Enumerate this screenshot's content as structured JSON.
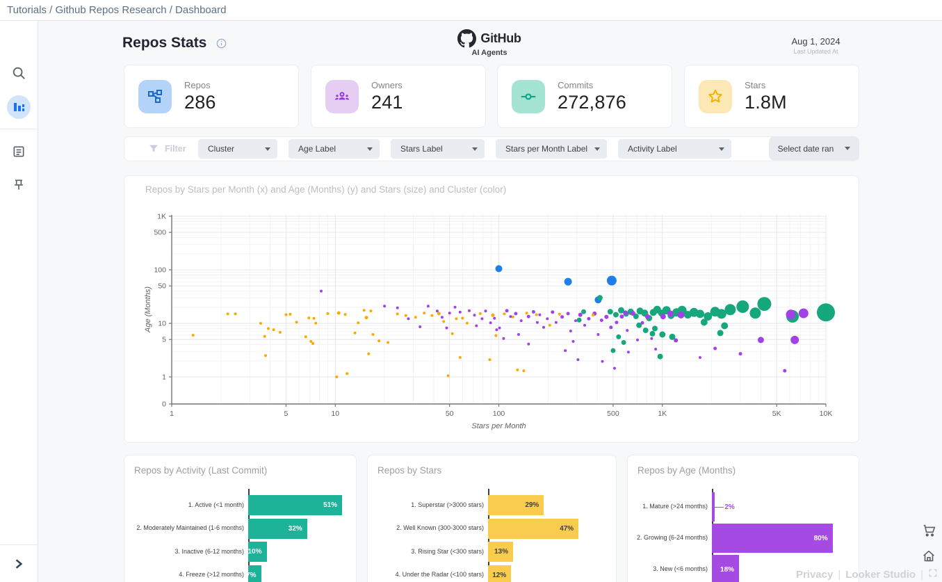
{
  "breadcrumb": "Tutorials / Github Repos Research / Dashboard",
  "header": {
    "title": "Repos Stats",
    "logo_title": "GitHub",
    "logo_subtitle": "AI Agents",
    "date": "Aug 1, 2024",
    "date_label": "Last Updated At"
  },
  "stats": [
    {
      "label": "Repos",
      "value": "286",
      "icon": "repos-icon",
      "accent": "#1967d2",
      "bg": "#b3d3f9"
    },
    {
      "label": "Owners",
      "value": "241",
      "icon": "owners-icon",
      "accent": "#9334e6",
      "bg": "#e6cdf2"
    },
    {
      "label": "Commits",
      "value": "272,876",
      "icon": "commits-icon",
      "accent": "#12a48b",
      "bg": "#a5e3d2"
    },
    {
      "label": "Stars",
      "value": "1.8M",
      "icon": "star-icon",
      "accent": "#f2b100",
      "bg": "#fbe8b4"
    }
  ],
  "filters": {
    "label": "Filter",
    "chips": [
      "Cluster",
      "Age Label",
      "Stars Label",
      "Stars per Month Label",
      "Activity Label"
    ],
    "date_chip": "Select date ran"
  },
  "chart_data": [
    {
      "type": "scatter",
      "title": "Repos by Stars per Month (x) and Age (Months) (y) and Stars (size) and Cluster (color)",
      "xlabel": "Stars per Month",
      "ylabel": "Age (Months)",
      "x_scale": "log",
      "y_scale": "log",
      "x_tick_values": [
        1,
        5,
        10,
        50,
        100,
        500,
        1000,
        5000,
        10000
      ],
      "x_ticks": [
        "1",
        "5",
        "10",
        "50",
        "100",
        "500",
        "1K",
        "5K",
        "10K"
      ],
      "y_tick_values": [
        0,
        1,
        5,
        10,
        50,
        100,
        500,
        1000
      ],
      "y_ticks": [
        "0",
        "1",
        "5",
        "10",
        "50",
        "100",
        "500",
        "1K"
      ],
      "clusters": {
        "o": "#f9ab00",
        "p": "#a142e8",
        "g": "#17a77d",
        "b": "#1f7fe8"
      },
      "points": [
        [
          1.35,
          6,
          2,
          "o"
        ],
        [
          2.2,
          15,
          2,
          "o"
        ],
        [
          2.45,
          15,
          2,
          "o"
        ],
        [
          3.5,
          10,
          2,
          "o"
        ],
        [
          3.9,
          8,
          2,
          "o"
        ],
        [
          4.2,
          7.6,
          2,
          "o"
        ],
        [
          4.6,
          6.8,
          2,
          "o"
        ],
        [
          3.7,
          5.7,
          2,
          "o"
        ],
        [
          3.75,
          2.5,
          2,
          "o"
        ],
        [
          5,
          14.5,
          2,
          "o"
        ],
        [
          5.3,
          14.8,
          2,
          "o"
        ],
        [
          5.8,
          10.5,
          2,
          "o"
        ],
        [
          6.9,
          12.6,
          2,
          "o"
        ],
        [
          7.4,
          12.4,
          2,
          "o"
        ],
        [
          7.6,
          10.1,
          2,
          "o"
        ],
        [
          6.6,
          5.6,
          2,
          "o"
        ],
        [
          7.1,
          4.6,
          2,
          "o"
        ],
        [
          7.3,
          4.2,
          2,
          "o"
        ],
        [
          9,
          15.2,
          2,
          "o"
        ],
        [
          10.5,
          15.6,
          2.5,
          "o"
        ],
        [
          11.5,
          14.6,
          2,
          "o"
        ],
        [
          13.8,
          10.2,
          2,
          "o"
        ],
        [
          15.5,
          12.8,
          2.5,
          "o"
        ],
        [
          16.5,
          17,
          2,
          "o"
        ],
        [
          15,
          17.5,
          2,
          "o"
        ],
        [
          13.2,
          6.6,
          2,
          "o"
        ],
        [
          17,
          6.2,
          2,
          "o"
        ],
        [
          18.5,
          4.7,
          2,
          "o"
        ],
        [
          21,
          4.4,
          2,
          "o"
        ],
        [
          16,
          2.7,
          2,
          "o"
        ],
        [
          10.2,
          1,
          2,
          "o"
        ],
        [
          11.8,
          1.15,
          2,
          "o"
        ],
        [
          24,
          15,
          2,
          "o"
        ],
        [
          27,
          14,
          2,
          "o"
        ],
        [
          31,
          13,
          2,
          "o"
        ],
        [
          35,
          15.5,
          2,
          "o"
        ],
        [
          39,
          14,
          2,
          "o"
        ],
        [
          43,
          15.2,
          2.5,
          "o"
        ],
        [
          46,
          10.8,
          2,
          "o"
        ],
        [
          55,
          12.2,
          2,
          "o"
        ],
        [
          60,
          12.5,
          2,
          "o"
        ],
        [
          64,
          10.1,
          2,
          "o"
        ],
        [
          52,
          6.4,
          2,
          "o"
        ],
        [
          77,
          15.2,
          2,
          "o"
        ],
        [
          92,
          14.2,
          2.5,
          "o"
        ],
        [
          108,
          15,
          2,
          "o"
        ],
        [
          122,
          13.2,
          2,
          "o"
        ],
        [
          96,
          5.9,
          2,
          "o"
        ],
        [
          130,
          1.35,
          2,
          "o"
        ],
        [
          142,
          1.3,
          2,
          "o"
        ],
        [
          88,
          2.1,
          2,
          "o"
        ],
        [
          58,
          2.3,
          2,
          "o"
        ],
        [
          49,
          1.05,
          2,
          "o"
        ],
        [
          205,
          9.2,
          2,
          "o"
        ],
        [
          235,
          14.8,
          2,
          "o"
        ],
        [
          148,
          15.5,
          2,
          "o"
        ],
        [
          170,
          14.5,
          2,
          "o"
        ],
        [
          377,
          14.3,
          2,
          "o"
        ],
        [
          8.2,
          40,
          2,
          "p"
        ],
        [
          20,
          21,
          2,
          "p"
        ],
        [
          24,
          19.5,
          2,
          "p"
        ],
        [
          28,
          12.2,
          2,
          "p"
        ],
        [
          33,
          8.6,
          2,
          "p"
        ],
        [
          37,
          21,
          2,
          "p"
        ],
        [
          42,
          17,
          2,
          "p"
        ],
        [
          45,
          13,
          2,
          "p"
        ],
        [
          50,
          15.5,
          2,
          "p"
        ],
        [
          48,
          8.2,
          2,
          "p"
        ],
        [
          54,
          20,
          2,
          "p"
        ],
        [
          58,
          16.2,
          2,
          "p"
        ],
        [
          66,
          17.2,
          2,
          "p"
        ],
        [
          71,
          14.2,
          2,
          "p"
        ],
        [
          73,
          9,
          2,
          "p"
        ],
        [
          79,
          12.2,
          2,
          "p"
        ],
        [
          83,
          17,
          2,
          "p"
        ],
        [
          89,
          10.2,
          2,
          "p"
        ],
        [
          94,
          12.4,
          2,
          "p"
        ],
        [
          101,
          8.2,
          2,
          "p"
        ],
        [
          112,
          17.2,
          2.5,
          "p"
        ],
        [
          118,
          13.4,
          2,
          "p"
        ],
        [
          127,
          15.2,
          2.5,
          "p"
        ],
        [
          137,
          11.2,
          2,
          "p"
        ],
        [
          152,
          13.4,
          2.5,
          "p"
        ],
        [
          163,
          16.4,
          2.5,
          "p"
        ],
        [
          172,
          10.4,
          2,
          "p"
        ],
        [
          178,
          14.4,
          2,
          "p"
        ],
        [
          188,
          8.4,
          2,
          "p"
        ],
        [
          198,
          12.2,
          2,
          "p"
        ],
        [
          213,
          16.2,
          2.5,
          "p"
        ],
        [
          224,
          10.4,
          2,
          "p"
        ],
        [
          244,
          13.2,
          2.5,
          "p"
        ],
        [
          265,
          15.2,
          2.5,
          "p"
        ],
        [
          275,
          7.2,
          2,
          "p"
        ],
        [
          295,
          11.2,
          2,
          "p"
        ],
        [
          315,
          14.4,
          3,
          "p"
        ],
        [
          335,
          9.2,
          2,
          "p"
        ],
        [
          355,
          12.2,
          2.5,
          "p"
        ],
        [
          385,
          15.2,
          3,
          "p"
        ],
        [
          405,
          6.2,
          2,
          "p"
        ],
        [
          425,
          11.4,
          2.5,
          "p"
        ],
        [
          455,
          13.2,
          3,
          "p"
        ],
        [
          485,
          8.4,
          2.5,
          "p"
        ],
        [
          525,
          10.4,
          2.5,
          "p"
        ],
        [
          565,
          13.4,
          3,
          "p"
        ],
        [
          595,
          15.7,
          3.5,
          "p"
        ],
        [
          610,
          7.4,
          2,
          "p"
        ],
        [
          660,
          15.4,
          3.5,
          "p"
        ],
        [
          705,
          4.9,
          2,
          "p"
        ],
        [
          755,
          10.2,
          2.5,
          "p"
        ],
        [
          810,
          13.4,
          3.5,
          "p"
        ],
        [
          860,
          5.2,
          2,
          "p"
        ],
        [
          910,
          3.3,
          2,
          "p"
        ],
        [
          255,
          3.1,
          2,
          "p"
        ],
        [
          305,
          2.1,
          2,
          "p"
        ],
        [
          430,
          1.95,
          2,
          "p"
        ],
        [
          510,
          1.45,
          2,
          "p"
        ],
        [
          285,
          4.6,
          2,
          "p"
        ],
        [
          620,
          2.9,
          2,
          "p"
        ],
        [
          152,
          4.1,
          2,
          "p"
        ],
        [
          132,
          6.2,
          2,
          "p"
        ],
        [
          107,
          5.2,
          2,
          "p"
        ],
        [
          97,
          7.6,
          2,
          "p"
        ],
        [
          1010,
          13.4,
          4,
          "p"
        ],
        [
          1210,
          4.8,
          3,
          "p"
        ],
        [
          3000,
          2.7,
          2.5,
          "p"
        ],
        [
          5600,
          1.3,
          2.5,
          "p"
        ],
        [
          2100,
          3.4,
          2.5,
          "p"
        ],
        [
          1700,
          2.3,
          2,
          "p"
        ],
        [
          1300,
          14.3,
          5,
          "p"
        ],
        [
          6100,
          14.6,
          7,
          "p"
        ],
        [
          7300,
          15.4,
          7,
          "p"
        ],
        [
          6450,
          4.9,
          6,
          "p"
        ],
        [
          4000,
          4.9,
          4.5,
          "p"
        ],
        [
          1120,
          15.2,
          4.5,
          "p"
        ],
        [
          310,
          11.5,
          3.5,
          "g"
        ],
        [
          330,
          16.5,
          3.5,
          "g"
        ],
        [
          415,
          30,
          4,
          "g"
        ],
        [
          480,
          16.5,
          4,
          "g"
        ],
        [
          520,
          14.5,
          4,
          "g"
        ],
        [
          560,
          17.5,
          4.5,
          "g"
        ],
        [
          600,
          15,
          4,
          "g"
        ],
        [
          640,
          16.5,
          4.5,
          "g"
        ],
        [
          690,
          13.5,
          4,
          "g"
        ],
        [
          730,
          17,
          5,
          "g"
        ],
        [
          780,
          15.5,
          5,
          "g"
        ],
        [
          830,
          12.5,
          4.5,
          "g"
        ],
        [
          880,
          16,
          5,
          "g"
        ],
        [
          930,
          18,
          5.5,
          "g"
        ],
        [
          990,
          15.5,
          5,
          "g"
        ],
        [
          1060,
          17.5,
          6,
          "g"
        ],
        [
          1130,
          14,
          5,
          "g"
        ],
        [
          1220,
          16,
          6,
          "g"
        ],
        [
          1320,
          17.5,
          6.5,
          "g"
        ],
        [
          1430,
          14.5,
          5.5,
          "g"
        ],
        [
          1560,
          16,
          6.5,
          "g"
        ],
        [
          1700,
          15,
          6,
          "g"
        ],
        [
          1900,
          13.5,
          6,
          "g"
        ],
        [
          2100,
          16.5,
          7,
          "g"
        ],
        [
          2300,
          15,
          7,
          "g"
        ],
        [
          2600,
          18,
          8,
          "g"
        ],
        [
          3100,
          20.5,
          9,
          "g"
        ],
        [
          4200,
          23,
          10,
          "g"
        ],
        [
          3700,
          15.5,
          8,
          "g"
        ],
        [
          6250,
          13.5,
          9,
          "g"
        ],
        [
          10000,
          16,
          13,
          "g"
        ],
        [
          900,
          8,
          4,
          "g"
        ],
        [
          1000,
          6.2,
          4.5,
          "g"
        ],
        [
          1150,
          5.6,
          4.5,
          "g"
        ],
        [
          720,
          9.2,
          4,
          "g"
        ],
        [
          790,
          7.4,
          4,
          "g"
        ],
        [
          870,
          6.4,
          4,
          "g"
        ],
        [
          970,
          2.4,
          4,
          "g"
        ],
        [
          540,
          5.6,
          3.5,
          "g"
        ],
        [
          580,
          4.4,
          3.5,
          "g"
        ],
        [
          500,
          3.1,
          3.5,
          "g"
        ],
        [
          1800,
          10.5,
          5,
          "g"
        ],
        [
          2400,
          9,
          5,
          "g"
        ],
        [
          2260,
          6.6,
          4.5,
          "g"
        ],
        [
          100,
          105,
          5,
          "b"
        ],
        [
          265,
          60,
          5.5,
          "b"
        ],
        [
          490,
          63,
          7,
          "b"
        ],
        [
          405,
          27.5,
          5,
          "b"
        ]
      ]
    },
    {
      "type": "bar",
      "title": "Repos by Activity (Last Commit)",
      "categories": [
        "1. Active (<1 month)",
        "2. Moderately Maintained (1-6 months)",
        "3. Inactive (6-12 months)",
        "4. Freeze (>12 months)"
      ],
      "values": [
        51,
        32,
        10,
        7
      ],
      "unit": "%",
      "color": "#1cb399",
      "value_color": "#ffffff"
    },
    {
      "type": "bar",
      "title": "Repos by Stars",
      "categories": [
        "1. Superstar (>3000 stars)",
        "2. Well Known (300-3000 stars)",
        "3. Rising Star (<300 stars)",
        "4. Under the Radar (<100 stars)"
      ],
      "values": [
        29,
        47,
        13,
        12
      ],
      "unit": "%",
      "color": "#facc4e",
      "value_color": "#3c4043"
    },
    {
      "type": "bar",
      "title": "Repos by Age (Months)",
      "categories": [
        "1. Mature (>24 months)",
        "2. Growing (6-24 months)",
        "3. New (<6 months)"
      ],
      "values": [
        2,
        80,
        18
      ],
      "unit": "%",
      "color": "#a54be4",
      "value_color": "#ffffff"
    }
  ],
  "footer": {
    "privacy": "Privacy",
    "product": "Looker Studio"
  }
}
